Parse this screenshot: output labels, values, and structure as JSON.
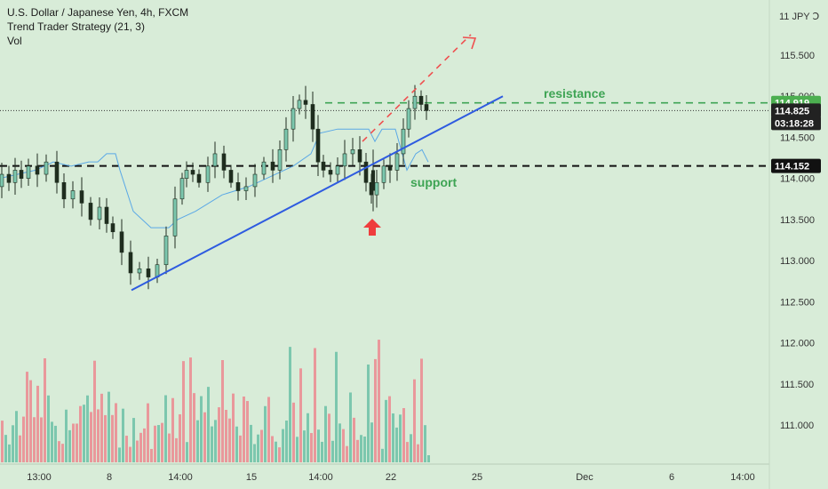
{
  "header": {
    "symbol": "U.S. Dollar / Japanese Yen, 4h, FXCM",
    "indicator": "Trend Trader Strategy (21, 3)",
    "volume_label": "Vol",
    "currency_label": "11 JPY Ↄ"
  },
  "colors": {
    "background": "#d8ecd8",
    "candle": "#1f2d1f",
    "volume_up": "#7cc7ae",
    "volume_down": "#e9989b",
    "trendline": "#2e5be0",
    "indicator": "#5aa8e6",
    "resistance": "#3ea454",
    "support_line": "#111111",
    "projection": "#ef4f4f",
    "arrow": "#ef3d3d"
  },
  "chart_data": {
    "type": "candlestick",
    "y_ticks": [
      115.5,
      115.0,
      114.5,
      114.0,
      113.5,
      113.0,
      112.5,
      112.0,
      111.5,
      111.0
    ],
    "y_tick_labels": [
      "115.500",
      "115.000",
      "114.500",
      "114.000",
      "113.500",
      "113.000",
      "112.500",
      "112.000",
      "111.500",
      "111.000"
    ],
    "x_tick_labels": [
      "13:00",
      "8",
      "14:00",
      "15",
      "14:00",
      "22",
      "25",
      "Dec",
      "6",
      "14:00"
    ],
    "ylim": [
      110.65,
      116.4
    ],
    "price_badges": [
      {
        "value": "114.919",
        "color": "#4caf50"
      },
      {
        "value": "114.825",
        "color": "#222222"
      },
      {
        "value": "03:18:28",
        "color": "#222222"
      },
      {
        "value": "114.152",
        "color": "#111111"
      }
    ],
    "levels": {
      "resistance": 114.919,
      "support": 114.152,
      "last": 114.825
    },
    "annotations": [
      {
        "text": "resistance",
        "color": "#3ea454"
      },
      {
        "text": "support",
        "color": "#3ea454"
      }
    ]
  }
}
